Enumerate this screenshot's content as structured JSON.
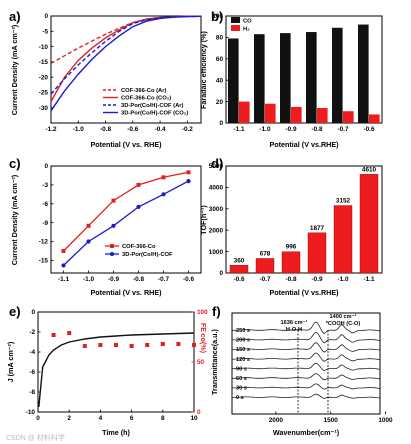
{
  "watermark": "CSDN @ 材料科学",
  "chart_data": [
    {
      "panel": "a)",
      "type": "line",
      "xlabel": "Potential (V vs. RHE)",
      "ylabel": "Current Density (mA cm⁻²)",
      "xlim": [
        -1.2,
        -0.1
      ],
      "ylim": [
        -35,
        0
      ],
      "xticks": [
        "-1.2",
        "-1.0",
        "-0.8",
        "-0.6",
        "-0.4",
        "-0.2"
      ],
      "yticks": [
        "0",
        "-5",
        "-10",
        "-15",
        "-20",
        "-25",
        "-30"
      ],
      "series": [
        {
          "name": "COF-366-Co (Ar)",
          "color": "#e02020",
          "dash": "4,2.5",
          "x": [
            -1.2,
            -1.1,
            -1.0,
            -0.9,
            -0.8,
            -0.7,
            -0.6,
            -0.5,
            -0.4,
            -0.3,
            -0.2,
            -0.1
          ],
          "y": [
            -15.5,
            -13,
            -10.5,
            -8.2,
            -6,
            -4,
            -2.2,
            -1.2,
            -0.6,
            -0.3,
            -0.15,
            -0.1
          ]
        },
        {
          "name": "COF-366-Co (CO₂)",
          "color": "#e02020",
          "dash": "",
          "x": [
            -1.2,
            -1.1,
            -1.0,
            -0.9,
            -0.8,
            -0.7,
            -0.6,
            -0.5,
            -0.4,
            -0.3,
            -0.2,
            -0.1
          ],
          "y": [
            -28,
            -20,
            -14.5,
            -10.5,
            -7.2,
            -4.5,
            -2.2,
            -1.0,
            -0.5,
            -0.25,
            -0.1,
            -0.05
          ]
        },
        {
          "name": "3D-Por(Co/H)-COF (Ar)",
          "color": "#1a1ad0",
          "dash": "4,2.5",
          "x": [
            -1.2,
            -1.1,
            -1.0,
            -0.9,
            -0.8,
            -0.7,
            -0.6,
            -0.5,
            -0.4,
            -0.3,
            -0.2,
            -0.1
          ],
          "y": [
            -25.5,
            -20.5,
            -16,
            -12,
            -8.3,
            -5,
            -2.5,
            -1.2,
            -0.6,
            -0.3,
            -0.15,
            -0.1
          ]
        },
        {
          "name": "3D-Por(Co/H)-COF (CO₂)",
          "color": "#1a1ad0",
          "dash": "",
          "x": [
            -1.2,
            -1.1,
            -1.0,
            -0.9,
            -0.8,
            -0.7,
            -0.6,
            -0.5,
            -0.4,
            -0.3,
            -0.2,
            -0.1
          ],
          "y": [
            -31,
            -24.5,
            -19,
            -14.2,
            -10,
            -6.5,
            -3.5,
            -1.7,
            -0.8,
            -0.4,
            -0.2,
            -0.1
          ]
        }
      ],
      "legend_position": "bottom-right"
    },
    {
      "panel": "b)",
      "type": "bar",
      "xlabel": "Potential (V vs.RHE)",
      "ylabel": "Faradaic efficiency (%)",
      "ylim": [
        0,
        100
      ],
      "categories": [
        "-1.1",
        "-1.0",
        "-0.9",
        "-0.8",
        "-0.7",
        "-0.6"
      ],
      "yticks": [
        "0",
        "20",
        "40",
        "60",
        "80",
        "100"
      ],
      "series": [
        {
          "name": "CO",
          "color": "#111111",
          "values": [
            79,
            83,
            84,
            85,
            89,
            92
          ]
        },
        {
          "name": "H₂",
          "color": "#ee1c1c",
          "values": [
            20,
            18,
            15,
            14,
            11,
            8
          ]
        }
      ],
      "legend_position": "top-left"
    },
    {
      "panel": "c)",
      "type": "line",
      "xlabel": "Potential (V vs. RHE)",
      "ylabel": "Current Density (mA cm⁻²)",
      "xlim": [
        -1.15,
        -0.55
      ],
      "ylim": [
        -17,
        0
      ],
      "xticks": [
        "-1.1",
        "-1.0",
        "-0.9",
        "-0.8",
        "-0.7",
        "-0.6"
      ],
      "yticks": [
        "0",
        "-3",
        "-6",
        "-9",
        "-12",
        "-15"
      ],
      "series": [
        {
          "name": "COF-366-Co",
          "color": "#e02020",
          "marker": "square",
          "x": [
            -1.1,
            -1.0,
            -0.9,
            -0.8,
            -0.7,
            -0.6
          ],
          "y": [
            -13.5,
            -9.5,
            -5.5,
            -3.0,
            -1.8,
            -1.0
          ]
        },
        {
          "name": "3D-Por(Co/H)-COF",
          "color": "#1a1ad0",
          "marker": "circle",
          "x": [
            -1.1,
            -1.0,
            -0.9,
            -0.8,
            -0.7,
            -0.6
          ],
          "y": [
            -15.8,
            -12.0,
            -9.5,
            -6.5,
            -4.5,
            -2.4
          ]
        }
      ],
      "legend_position": "bottom-right"
    },
    {
      "panel": "d)",
      "type": "bar",
      "xlabel": "Potential (V vs.RHE)",
      "ylabel": "TOF(h⁻¹)",
      "ylim": [
        0,
        5000
      ],
      "categories": [
        "-0.6",
        "-0.7",
        "-0.8",
        "-0.9",
        "-1.0",
        "-1.1"
      ],
      "yticks": [
        "0",
        "1000",
        "2000",
        "3000",
        "4000",
        "5000"
      ],
      "values": [
        360,
        678,
        996,
        1877,
        3152,
        4610
      ],
      "data_labels": [
        "360",
        "678",
        "996",
        "1877",
        "3152",
        "4610"
      ],
      "color": "#ee1c1c"
    },
    {
      "panel": "e)",
      "type": "scatter",
      "xlabel": "Time (h)",
      "ylabel": "J (mA cm⁻²)",
      "ylabel_right": "FE co(%)",
      "xlim": [
        0,
        10
      ],
      "ylim": [
        -10,
        0
      ],
      "ylim_right": [
        0,
        100
      ],
      "xticks": [
        "0",
        "2",
        "4",
        "6",
        "8",
        "10"
      ],
      "yticks": [
        "0",
        "-2",
        "-4",
        "-6",
        "-8",
        "-10"
      ],
      "yticks_right": [
        "0",
        "50",
        "100"
      ],
      "series": [
        {
          "name": "J",
          "color": "#111111",
          "x": [
            0.05,
            0.3,
            0.7,
            1,
            1.5,
            2,
            3,
            4,
            5,
            6,
            7,
            8,
            9,
            10
          ],
          "y": [
            -9.5,
            -5.5,
            -4.3,
            -3.8,
            -3.3,
            -3.0,
            -2.7,
            -2.5,
            -2.4,
            -2.3,
            -2.25,
            -2.2,
            -2.15,
            -2.1
          ]
        },
        {
          "name": "FEco",
          "color": "#e02020",
          "axis": "right",
          "x": [
            1,
            2,
            3,
            4,
            5,
            6,
            7,
            8,
            9,
            10
          ],
          "y": [
            77,
            79,
            66,
            67,
            67,
            66,
            67,
            68,
            68,
            67
          ]
        }
      ]
    },
    {
      "panel": "f)",
      "type": "line",
      "xlabel": "Wavenumber(cm⁻¹)",
      "ylabel": "Transmittance(a.u.)",
      "xlim": [
        2400,
        1050
      ],
      "xticks": [
        "2000",
        "1500",
        "1000"
      ],
      "annotations": [
        "1636 cm⁻¹",
        "H-O-H",
        "1400 cm⁻¹",
        "*COOH (C-O)"
      ],
      "series": [
        {
          "name": "250 s"
        },
        {
          "name": "200 s"
        },
        {
          "name": "150 s"
        },
        {
          "name": "120 s"
        },
        {
          "name": "90 s"
        },
        {
          "name": "60 s"
        },
        {
          "name": "30 s"
        },
        {
          "name": "0 s"
        }
      ]
    }
  ]
}
